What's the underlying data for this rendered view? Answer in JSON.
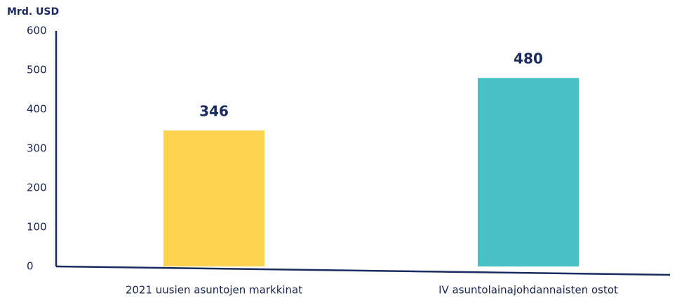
{
  "chart_data": {
    "type": "bar",
    "y_label": "Mrd. USD",
    "categories": [
      "2021 uusien asuntojen markkinat",
      "IV asuntolainajohdannaisten ostot"
    ],
    "values": [
      346,
      480
    ],
    "colors": [
      "#fdd34f",
      "#47c1c6"
    ],
    "ylim": [
      0,
      600
    ],
    "yticks": [
      0,
      100,
      200,
      300,
      400,
      500,
      600
    ],
    "grid": false
  }
}
